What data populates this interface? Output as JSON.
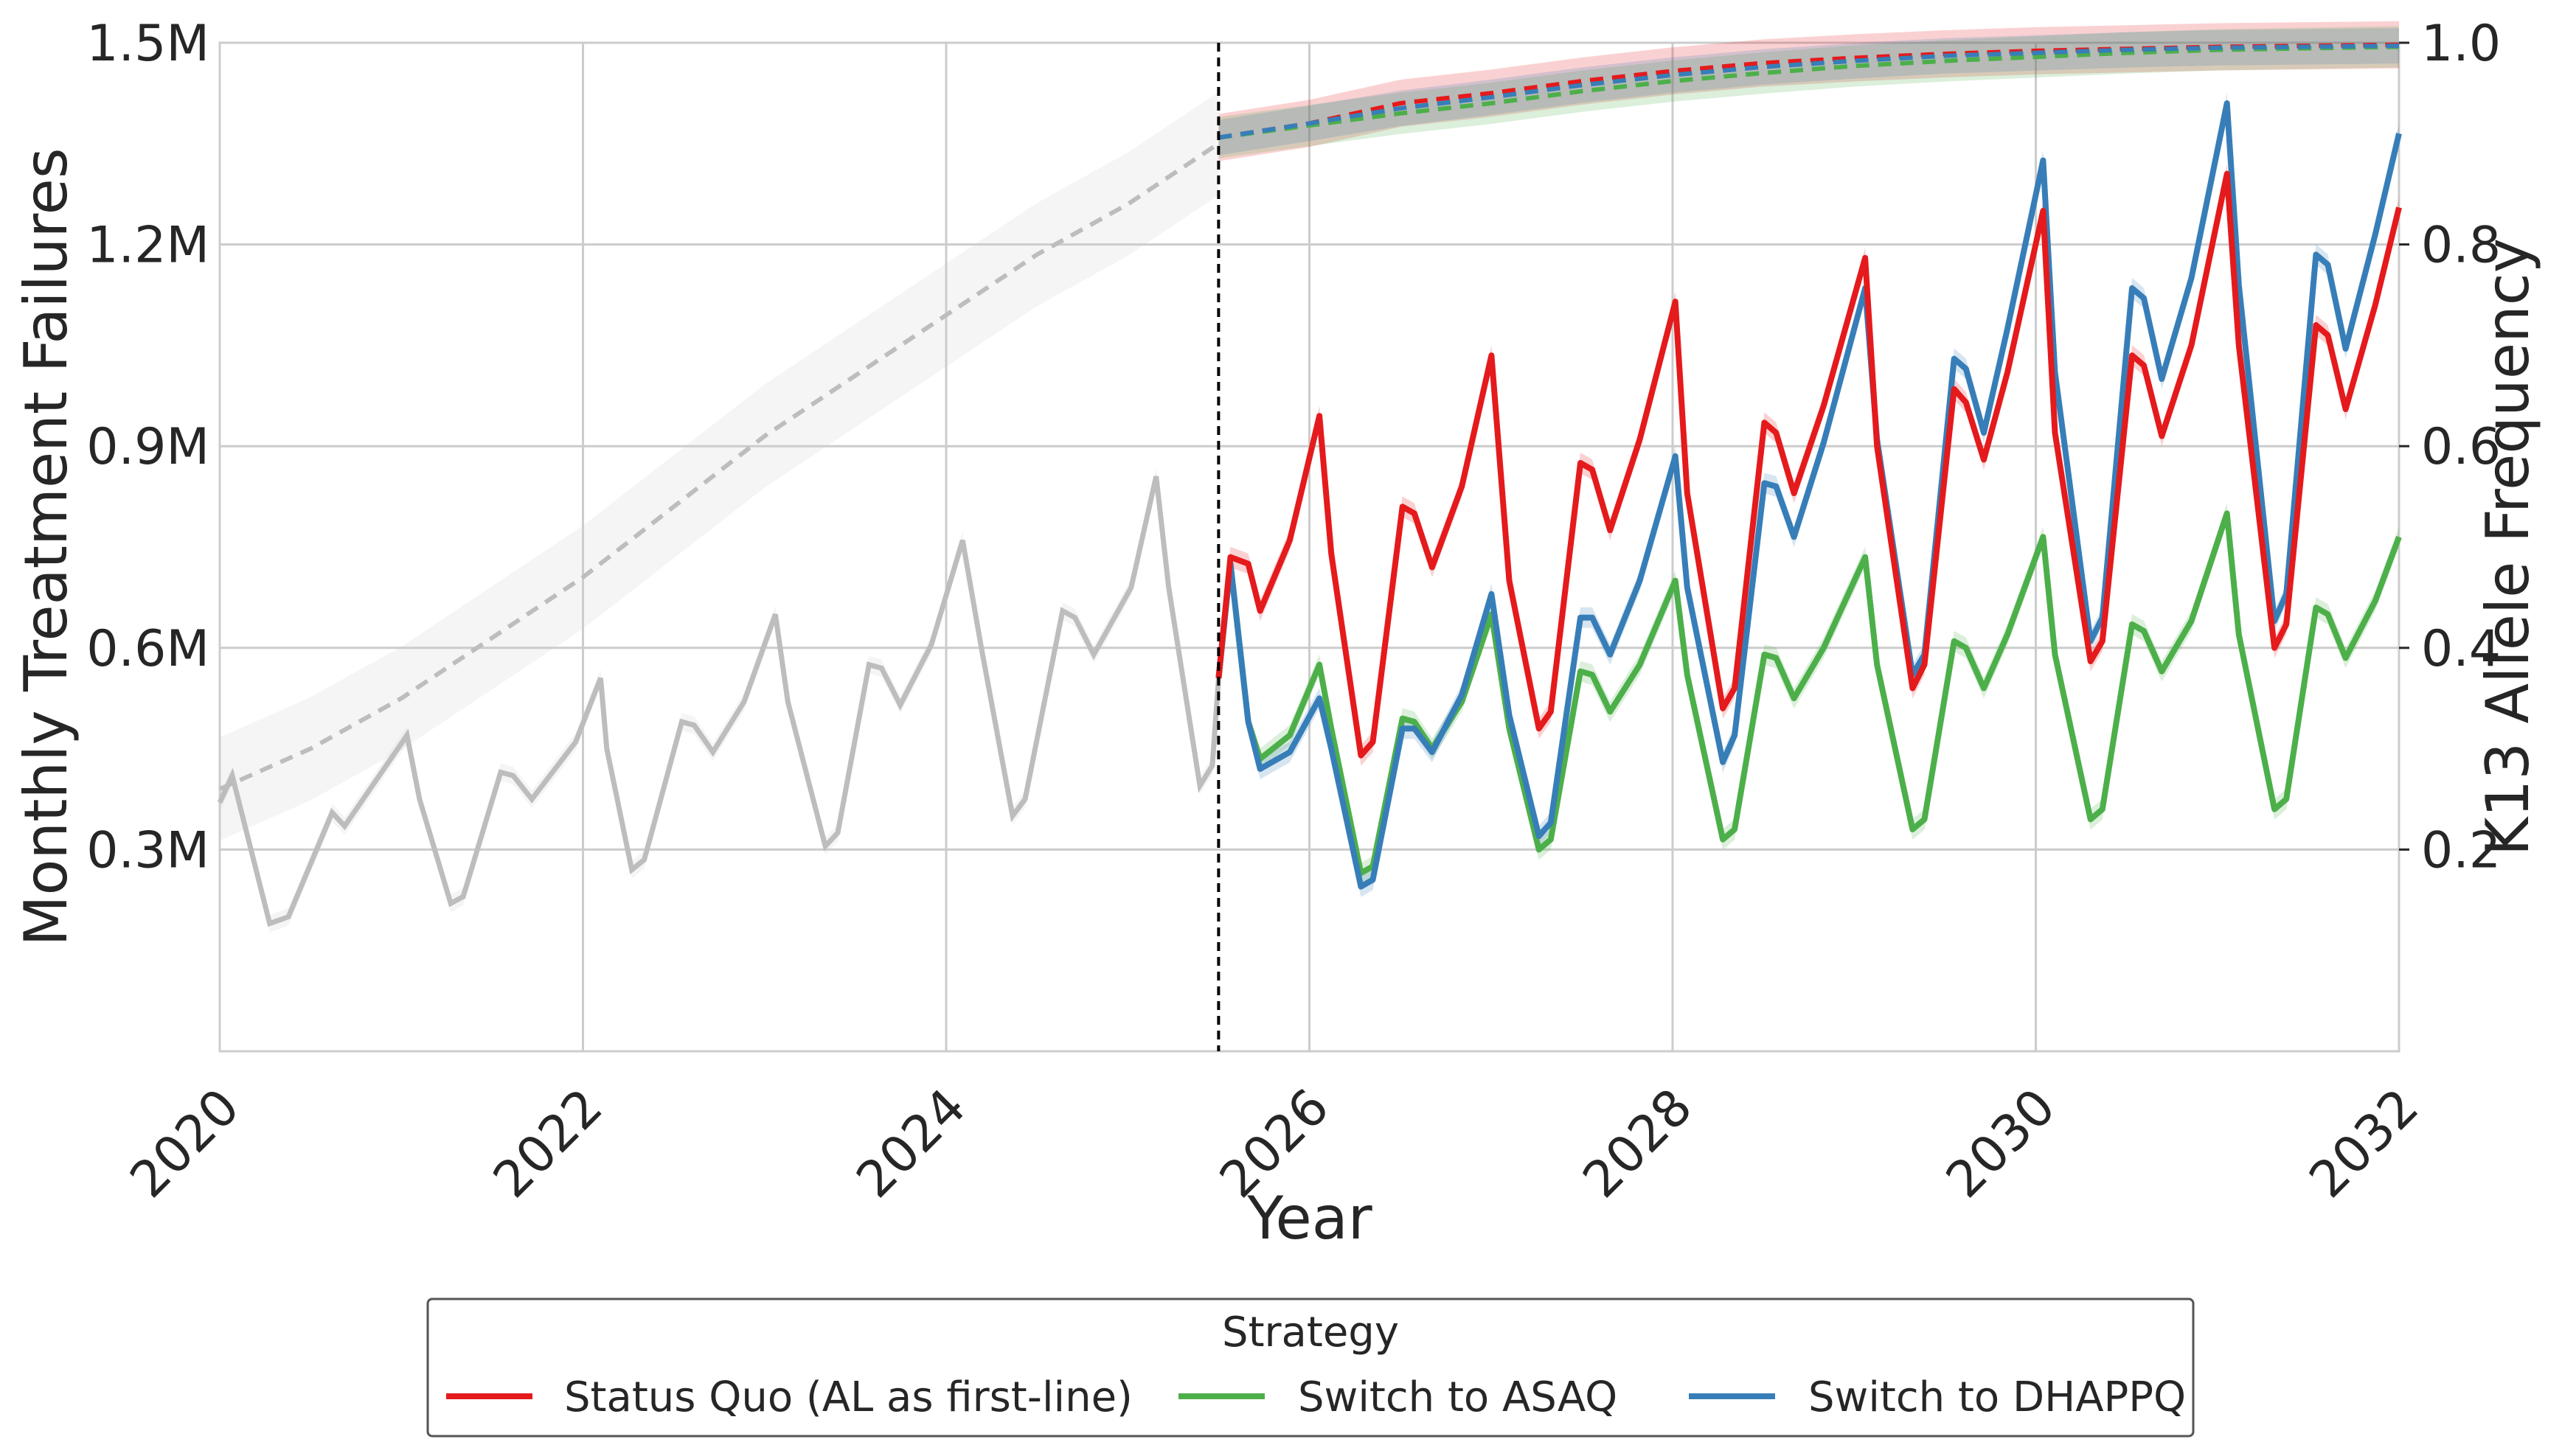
{
  "chart_data": {
    "type": "line",
    "title": "",
    "xlabel": "Year",
    "ylabel_left": "Monthly Treatment Failures",
    "ylabel_right": "K13 Allele Frequency",
    "xlim": [
      2020,
      2032
    ],
    "ylim_left": [
      0,
      1500000
    ],
    "ylim_right": [
      0,
      1.0
    ],
    "x_ticks": [
      "2020",
      "2022",
      "2024",
      "2026",
      "2028",
      "2030",
      "2032"
    ],
    "y_left_ticks": [
      "0.3M",
      "0.6M",
      "0.9M",
      "1.2M",
      "1.5M"
    ],
    "y_right_ticks": [
      "0.2",
      "0.4",
      "0.6",
      "0.8",
      "1.0"
    ],
    "grid": true,
    "intervention_year": 2025.5,
    "historical": {
      "color": "#bdbdbd",
      "failures": [
        [
          2020.0,
          370000
        ],
        [
          2020.1,
          410000
        ],
        [
          2020.4,
          190000
        ],
        [
          2020.55,
          200000
        ],
        [
          2020.9,
          355000
        ],
        [
          2021.0,
          335000
        ],
        [
          2021.5,
          470000
        ],
        [
          2021.6,
          375000
        ],
        [
          2021.85,
          220000
        ],
        [
          2021.95,
          230000
        ],
        [
          2022.25,
          415000
        ],
        [
          2022.35,
          410000
        ],
        [
          2022.5,
          375000
        ],
        [
          2022.85,
          460000
        ],
        [
          2023.05,
          555000
        ],
        [
          2023.1,
          450000
        ],
        [
          2023.3,
          270000
        ],
        [
          2023.4,
          285000
        ],
        [
          2023.7,
          490000
        ],
        [
          2023.8,
          485000
        ],
        [
          2023.95,
          445000
        ],
        [
          2024.2,
          520000
        ],
        [
          2024.45,
          650000
        ],
        [
          2024.55,
          520000
        ],
        [
          2024.85,
          305000
        ],
        [
          2024.95,
          325000
        ],
        [
          2025.2,
          575000
        ],
        [
          2025.3,
          570000
        ],
        [
          2025.45,
          515000
        ],
        [
          2025.7,
          605000
        ],
        [
          2025.95,
          760000
        ],
        [
          2026.1,
          600000
        ],
        [
          2026.35,
          350000
        ],
        [
          2026.45,
          375000
        ],
        [
          2026.75,
          655000
        ],
        [
          2026.85,
          645000
        ],
        [
          2027.0,
          590000
        ],
        [
          2027.3,
          690000
        ],
        [
          2027.5,
          855000
        ],
        [
          2027.6,
          690000
        ],
        [
          2027.85,
          395000
        ],
        [
          2027.95,
          425000
        ],
        [
          2028.0,
          555000
        ]
      ],
      "allele": [
        [
          2020.0,
          0.26
        ],
        [
          2020.5,
          0.3
        ],
        [
          2021.0,
          0.35
        ],
        [
          2021.5,
          0.41
        ],
        [
          2022.0,
          0.47
        ],
        [
          2022.5,
          0.54
        ],
        [
          2023.0,
          0.61
        ],
        [
          2023.5,
          0.67
        ],
        [
          2024.0,
          0.73
        ],
        [
          2024.5,
          0.79
        ],
        [
          2025.0,
          0.84
        ],
        [
          2025.5,
          0.9
        ]
      ]
    },
    "series": [
      {
        "name": "Status Quo (AL as first-line)",
        "color": "#e41a1c",
        "failures": [
          [
            2025.5,
            555000
          ],
          [
            2025.6,
            735000
          ],
          [
            2025.75,
            725000
          ],
          [
            2025.85,
            655000
          ],
          [
            2026.1,
            760000
          ],
          [
            2026.35,
            945000
          ],
          [
            2026.45,
            740000
          ],
          [
            2026.7,
            440000
          ],
          [
            2026.8,
            460000
          ],
          [
            2027.05,
            810000
          ],
          [
            2027.15,
            800000
          ],
          [
            2027.3,
            720000
          ],
          [
            2027.55,
            840000
          ],
          [
            2027.8,
            1035000
          ],
          [
            2027.95,
            700000
          ],
          [
            2028.2,
            480000
          ],
          [
            2028.3,
            505000
          ],
          [
            2028.55,
            875000
          ],
          [
            2028.65,
            865000
          ],
          [
            2028.8,
            775000
          ],
          [
            2029.05,
            910000
          ],
          [
            2029.35,
            1115000
          ],
          [
            2029.45,
            830000
          ],
          [
            2029.75,
            510000
          ],
          [
            2029.85,
            540000
          ],
          [
            2030.1,
            935000
          ],
          [
            2030.2,
            920000
          ],
          [
            2030.35,
            830000
          ],
          [
            2030.6,
            960000
          ],
          [
            2030.95,
            1180000
          ],
          [
            2031.05,
            900000
          ],
          [
            2031.35,
            540000
          ],
          [
            2031.45,
            575000
          ],
          [
            2031.7,
            985000
          ],
          [
            2031.8,
            965000
          ],
          [
            2031.95,
            880000
          ],
          [
            2032.15,
            1010000
          ],
          [
            2032.45,
            1250000
          ],
          [
            2032.55,
            920000
          ],
          [
            2032.85,
            580000
          ],
          [
            2032.95,
            610000
          ],
          [
            2033.2,
            1035000
          ],
          [
            2033.3,
            1020000
          ],
          [
            2033.45,
            915000
          ],
          [
            2033.7,
            1050000
          ],
          [
            2034.0,
            1305000
          ],
          [
            2034.1,
            1050000
          ],
          [
            2034.4,
            600000
          ],
          [
            2034.5,
            635000
          ],
          [
            2034.75,
            1080000
          ],
          [
            2034.85,
            1065000
          ],
          [
            2035.0,
            955000
          ],
          [
            2035.25,
            1110000
          ],
          [
            2035.45,
            1255000
          ]
        ],
        "allele": [
          [
            2025.5,
            0.906
          ],
          [
            2026.0,
            0.92
          ],
          [
            2026.5,
            0.94
          ],
          [
            2027.0,
            0.95
          ],
          [
            2027.5,
            0.962
          ],
          [
            2028.0,
            0.972
          ],
          [
            2028.5,
            0.98
          ],
          [
            2029.0,
            0.985
          ],
          [
            2029.5,
            0.989
          ],
          [
            2030.0,
            0.992
          ],
          [
            2030.5,
            0.994
          ],
          [
            2031.0,
            0.996
          ],
          [
            2032.0,
            0.998
          ]
        ]
      },
      {
        "name": "Switch to ASAQ",
        "color": "#4daf4a",
        "failures": [
          [
            2025.5,
            555000
          ],
          [
            2025.6,
            725000
          ],
          [
            2025.75,
            490000
          ],
          [
            2025.85,
            435000
          ],
          [
            2026.1,
            470000
          ],
          [
            2026.35,
            575000
          ],
          [
            2026.45,
            480000
          ],
          [
            2026.7,
            265000
          ],
          [
            2026.8,
            275000
          ],
          [
            2027.05,
            495000
          ],
          [
            2027.15,
            490000
          ],
          [
            2027.3,
            450000
          ],
          [
            2027.55,
            520000
          ],
          [
            2027.8,
            650000
          ],
          [
            2027.95,
            480000
          ],
          [
            2028.2,
            300000
          ],
          [
            2028.3,
            315000
          ],
          [
            2028.55,
            565000
          ],
          [
            2028.65,
            560000
          ],
          [
            2028.8,
            505000
          ],
          [
            2029.05,
            575000
          ],
          [
            2029.35,
            700000
          ],
          [
            2029.45,
            560000
          ],
          [
            2029.75,
            315000
          ],
          [
            2029.85,
            330000
          ],
          [
            2030.1,
            590000
          ],
          [
            2030.2,
            585000
          ],
          [
            2030.35,
            525000
          ],
          [
            2030.6,
            600000
          ],
          [
            2030.95,
            735000
          ],
          [
            2031.05,
            575000
          ],
          [
            2031.35,
            330000
          ],
          [
            2031.45,
            345000
          ],
          [
            2031.7,
            610000
          ],
          [
            2031.8,
            600000
          ],
          [
            2031.95,
            540000
          ],
          [
            2032.15,
            620000
          ],
          [
            2032.45,
            765000
          ],
          [
            2032.55,
            590000
          ],
          [
            2032.85,
            345000
          ],
          [
            2032.95,
            360000
          ],
          [
            2033.2,
            635000
          ],
          [
            2033.3,
            625000
          ],
          [
            2033.45,
            565000
          ],
          [
            2033.7,
            640000
          ],
          [
            2034.0,
            800000
          ],
          [
            2034.1,
            620000
          ],
          [
            2034.4,
            360000
          ],
          [
            2034.5,
            375000
          ],
          [
            2034.75,
            660000
          ],
          [
            2034.85,
            650000
          ],
          [
            2035.0,
            585000
          ],
          [
            2035.25,
            670000
          ],
          [
            2035.45,
            765000
          ]
        ],
        "allele": [
          [
            2025.5,
            0.906
          ],
          [
            2026.0,
            0.918
          ],
          [
            2026.5,
            0.93
          ],
          [
            2027.0,
            0.94
          ],
          [
            2027.5,
            0.952
          ],
          [
            2028.0,
            0.962
          ],
          [
            2028.5,
            0.97
          ],
          [
            2029.0,
            0.977
          ],
          [
            2029.5,
            0.982
          ],
          [
            2030.0,
            0.986
          ],
          [
            2030.5,
            0.99
          ],
          [
            2031.0,
            0.993
          ],
          [
            2032.0,
            0.996
          ]
        ]
      },
      {
        "name": "Switch to DHAPPQ",
        "color": "#377eb8",
        "failures": [
          [
            2025.5,
            555000
          ],
          [
            2025.6,
            725000
          ],
          [
            2025.75,
            490000
          ],
          [
            2025.85,
            420000
          ],
          [
            2026.1,
            445000
          ],
          [
            2026.35,
            525000
          ],
          [
            2026.45,
            450000
          ],
          [
            2026.7,
            245000
          ],
          [
            2026.8,
            255000
          ],
          [
            2027.05,
            480000
          ],
          [
            2027.15,
            480000
          ],
          [
            2027.3,
            445000
          ],
          [
            2027.55,
            530000
          ],
          [
            2027.8,
            680000
          ],
          [
            2027.95,
            500000
          ],
          [
            2028.2,
            320000
          ],
          [
            2028.3,
            340000
          ],
          [
            2028.55,
            645000
          ],
          [
            2028.65,
            645000
          ],
          [
            2028.8,
            590000
          ],
          [
            2029.05,
            700000
          ],
          [
            2029.35,
            885000
          ],
          [
            2029.45,
            690000
          ],
          [
            2029.75,
            430000
          ],
          [
            2029.85,
            470000
          ],
          [
            2030.1,
            845000
          ],
          [
            2030.2,
            840000
          ],
          [
            2030.35,
            765000
          ],
          [
            2030.6,
            905000
          ],
          [
            2030.95,
            1135000
          ],
          [
            2031.05,
            910000
          ],
          [
            2031.35,
            560000
          ],
          [
            2031.45,
            590000
          ],
          [
            2031.7,
            1030000
          ],
          [
            2031.8,
            1015000
          ],
          [
            2031.95,
            920000
          ],
          [
            2032.15,
            1075000
          ],
          [
            2032.45,
            1325000
          ],
          [
            2032.55,
            1010000
          ],
          [
            2032.85,
            610000
          ],
          [
            2032.95,
            645000
          ],
          [
            2033.2,
            1135000
          ],
          [
            2033.3,
            1120000
          ],
          [
            2033.45,
            1000000
          ],
          [
            2033.7,
            1150000
          ],
          [
            2034.0,
            1410000
          ],
          [
            2034.1,
            1140000
          ],
          [
            2034.4,
            640000
          ],
          [
            2034.5,
            680000
          ],
          [
            2034.75,
            1185000
          ],
          [
            2034.85,
            1170000
          ],
          [
            2035.0,
            1045000
          ],
          [
            2035.25,
            1215000
          ],
          [
            2035.45,
            1365000
          ]
        ],
        "allele": [
          [
            2025.5,
            0.906
          ],
          [
            2026.0,
            0.92
          ],
          [
            2026.5,
            0.935
          ],
          [
            2027.0,
            0.946
          ],
          [
            2027.5,
            0.958
          ],
          [
            2028.0,
            0.968
          ],
          [
            2028.5,
            0.976
          ],
          [
            2029.0,
            0.982
          ],
          [
            2029.5,
            0.987
          ],
          [
            2030.0,
            0.99
          ],
          [
            2030.5,
            0.993
          ],
          [
            2031.0,
            0.995
          ],
          [
            2032.0,
            0.997
          ]
        ]
      }
    ],
    "legend": {
      "title": "Strategy",
      "placement": "bottom-center",
      "entries": [
        {
          "label": "Status Quo (AL as first-line)",
          "color": "#e41a1c"
        },
        {
          "label": "Switch to ASAQ",
          "color": "#4daf4a"
        },
        {
          "label": "Switch to DHAPPQ",
          "color": "#377eb8"
        }
      ]
    }
  }
}
